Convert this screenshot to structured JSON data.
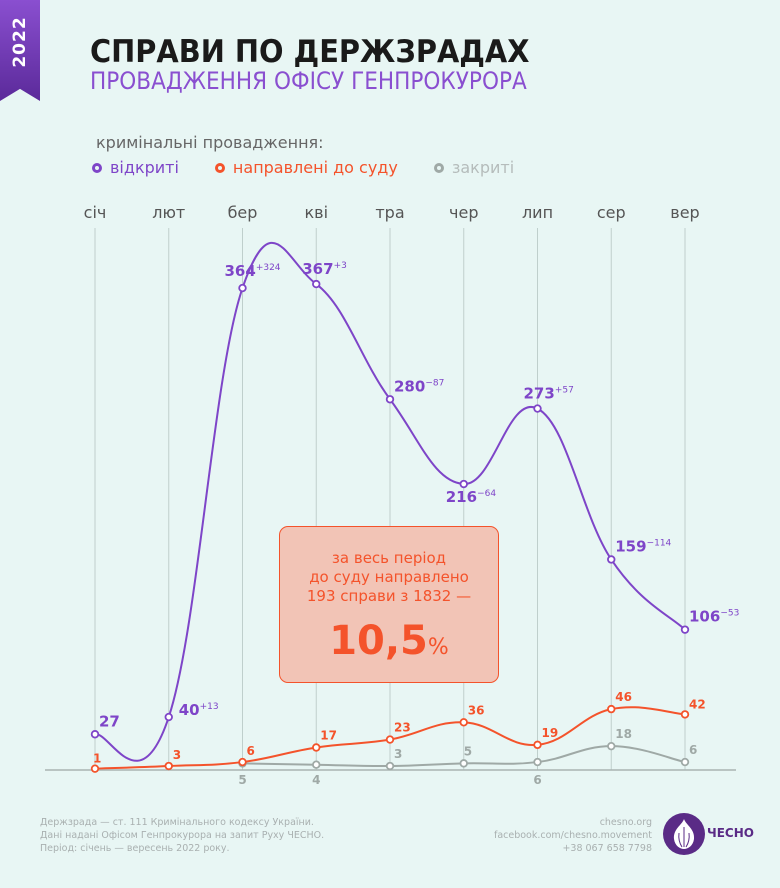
{
  "year": "2022",
  "title": "СПРАВИ ПО ДЕРЖЗРАДАХ",
  "subtitle": "ПРОВАДЖЕННЯ ОФІСУ ГЕНПРОКУРОРА",
  "legend_title": "кримінальні провадження:",
  "colors": {
    "opened": "#7e45c8",
    "sent": "#f4532b",
    "closed": "#9fa9a6",
    "background": "#e8f6f4"
  },
  "chart_data": {
    "type": "line",
    "categories": [
      "січ",
      "лют",
      "бер",
      "кві",
      "тра",
      "чер",
      "лип",
      "сер",
      "вер"
    ],
    "grid": "vertical",
    "legend": "top-left",
    "series": [
      {
        "name": "відкриті",
        "values": [
          27,
          40,
          364,
          367,
          280,
          216,
          273,
          159,
          106
        ],
        "changes": [
          "",
          "+13",
          "+324",
          "+3",
          "−87",
          "−64",
          "+57",
          "−114",
          "−53"
        ]
      },
      {
        "name": "направлені до суду",
        "values": [
          1,
          3,
          6,
          17,
          23,
          36,
          19,
          46,
          42
        ]
      },
      {
        "name": "закриті",
        "values": [
          null,
          null,
          5,
          4,
          3,
          5,
          6,
          18,
          6
        ]
      }
    ]
  },
  "callout": {
    "line1": "за весь період",
    "line2": "до суду направлено",
    "line3": "193 справи з 1832 —",
    "value": "10,5",
    "unit": "%"
  },
  "footer": {
    "notes": [
      "Держзрада — ст. 111 Кримінального кодексу України.",
      "Дані надані Офісом Генпрокурора на запит Руху ЧЕСНО.",
      "Період: січень — вересень 2022 року."
    ],
    "contacts": [
      "chesno.org",
      "facebook.com/chesno.movement",
      "+38 067 658 7798"
    ],
    "logo": "ЧЕСНО"
  }
}
